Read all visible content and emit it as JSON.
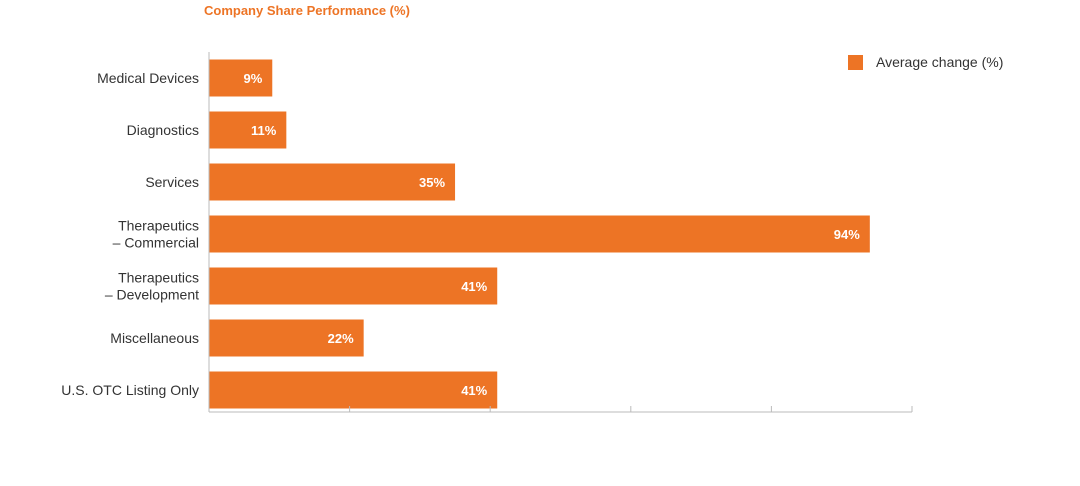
{
  "chart_data": {
    "type": "bar",
    "orientation": "horizontal",
    "title": "Company Share Performance (%)",
    "categories": [
      [
        "Medical Devices"
      ],
      [
        "Diagnostics"
      ],
      [
        "Services"
      ],
      [
        "Therapeutics",
        "– Commercial"
      ],
      [
        "Therapeutics",
        "– Development"
      ],
      [
        "Miscellaneous"
      ],
      [
        "U.S. OTC Listing Only"
      ]
    ],
    "series": [
      {
        "name": "Average change (%)",
        "values": [
          9,
          11,
          35,
          94,
          41,
          22,
          41
        ],
        "labels": [
          "9%",
          "11%",
          "35%",
          "94%",
          "41%",
          "22%",
          "41%"
        ],
        "color": "#ED7425"
      }
    ],
    "xlim": [
      0,
      100
    ],
    "grid": false,
    "legend_position": "top-right"
  }
}
